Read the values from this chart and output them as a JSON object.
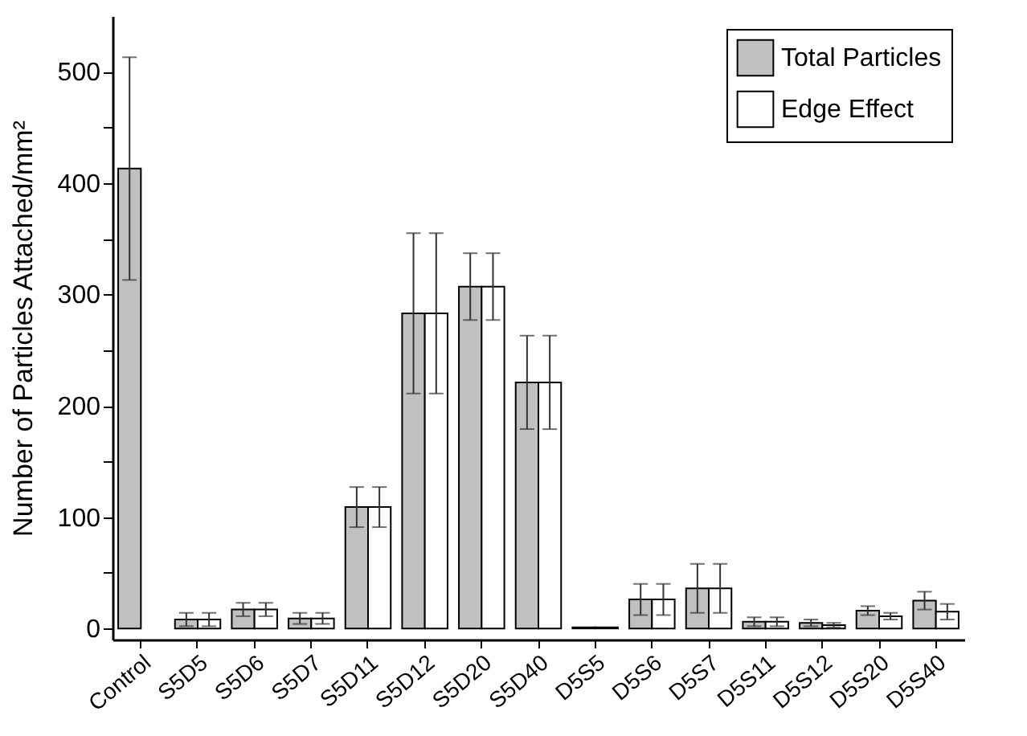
{
  "chart_data": {
    "type": "bar",
    "ylabel": "Number of Particles Attached/mm²",
    "categories": [
      "Control",
      "S5D5",
      "S5D6",
      "S5D7",
      "S5D11",
      "S5D12",
      "S5D20",
      "S5D40",
      "D5S5",
      "D5S6",
      "D5S7",
      "D5S11",
      "D5S12",
      "D5S20",
      "D5S40"
    ],
    "series": [
      {
        "name": "Total Particles",
        "color": "#c0c0c0",
        "values": [
          413,
          8,
          17,
          9,
          109,
          283,
          307,
          221,
          1,
          26,
          36,
          6,
          5,
          16,
          25
        ],
        "errors": [
          100,
          6,
          6,
          5,
          18,
          72,
          30,
          42,
          null,
          14,
          22,
          4,
          3,
          4,
          8
        ]
      },
      {
        "name": "Edge Effect",
        "color": "#ffffff",
        "values": [
          null,
          8,
          17,
          9,
          109,
          283,
          307,
          221,
          1,
          26,
          36,
          6,
          3,
          11,
          15
        ],
        "errors": [
          null,
          6,
          6,
          5,
          18,
          72,
          30,
          42,
          null,
          14,
          22,
          4,
          2,
          3,
          7
        ]
      }
    ],
    "ylim": [
      -10,
      550
    ],
    "yticks": [
      0,
      {
        "value": 50,
        "label": null
      },
      100,
      {
        "value": 150,
        "label": null
      },
      200,
      {
        "value": 250,
        "label": null
      },
      300,
      {
        "value": 350,
        "label": null
      },
      400,
      {
        "value": 450,
        "label": null
      },
      500
    ],
    "grid": false,
    "legend": "top right"
  }
}
